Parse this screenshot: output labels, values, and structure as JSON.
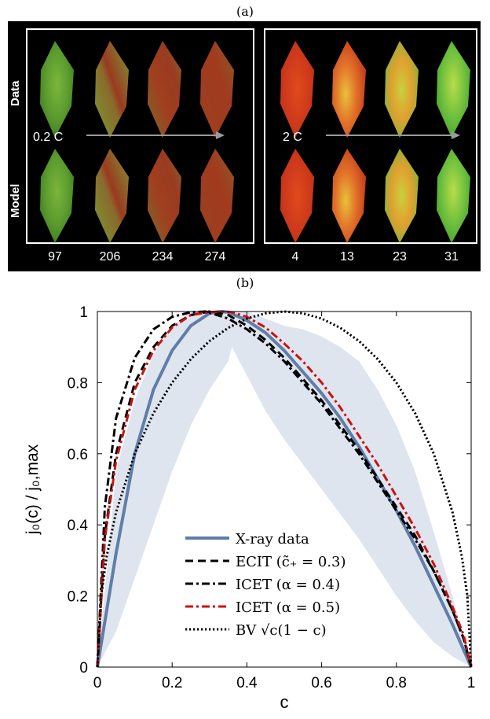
{
  "figure": {
    "label_a": "(a)",
    "label_b": "(b)"
  },
  "panel_a": {
    "row_labels": [
      "Data",
      "Model"
    ],
    "groups": [
      {
        "rate": "0.2 C",
        "times": [
          "97",
          "206",
          "234",
          "274"
        ]
      },
      {
        "rate": "2 C",
        "times": [
          "4",
          "13",
          "23",
          "31"
        ]
      }
    ]
  },
  "chart_data": {
    "type": "line",
    "xlabel": "c",
    "ylabel": "j₀(c) / j₀,max",
    "xlim": [
      0,
      1
    ],
    "ylim": [
      0,
      1
    ],
    "xticks": [
      "0",
      "0.2",
      "0.4",
      "0.6",
      "0.8",
      "1"
    ],
    "yticks": [
      "0",
      "0.2",
      "0.4",
      "0.6",
      "0.8",
      "1"
    ],
    "grid": false,
    "legend_position": "lower-center",
    "band": {
      "x": [
        0,
        0.05,
        0.1,
        0.15,
        0.2,
        0.25,
        0.3,
        0.35,
        0.36,
        0.4,
        0.45,
        0.5,
        0.55,
        0.6,
        0.65,
        0.7,
        0.75,
        0.8,
        0.85,
        0.9,
        0.95,
        1
      ],
      "upper": [
        0,
        0.55,
        0.75,
        0.88,
        0.96,
        1.0,
        1.0,
        1.0,
        1.0,
        1.0,
        0.98,
        0.96,
        0.95,
        0.93,
        0.9,
        0.86,
        0.78,
        0.68,
        0.55,
        0.38,
        0.2,
        0
      ],
      "lower": [
        0,
        0.1,
        0.25,
        0.4,
        0.55,
        0.68,
        0.78,
        0.86,
        0.9,
        0.82,
        0.72,
        0.64,
        0.57,
        0.5,
        0.43,
        0.36,
        0.28,
        0.2,
        0.13,
        0.07,
        0.03,
        0
      ]
    },
    "series": [
      {
        "name": "X-ray data",
        "color": "#5f7ea8",
        "style": "solid",
        "x": [
          0,
          0.05,
          0.1,
          0.15,
          0.2,
          0.25,
          0.3,
          0.33,
          0.35,
          0.4,
          0.45,
          0.5,
          0.55,
          0.6,
          0.65,
          0.7,
          0.75,
          0.8,
          0.85,
          0.9,
          0.95,
          1
        ],
        "y": [
          0,
          0.32,
          0.6,
          0.78,
          0.89,
          0.96,
          0.995,
          1.0,
          0.998,
          0.975,
          0.94,
          0.89,
          0.83,
          0.77,
          0.7,
          0.62,
          0.53,
          0.44,
          0.34,
          0.23,
          0.12,
          0
        ]
      },
      {
        "name": "ECIT",
        "color": "#000000",
        "style": "dashed",
        "x": [
          0,
          0.02,
          0.05,
          0.1,
          0.15,
          0.2,
          0.25,
          0.3,
          0.35,
          0.4,
          0.45,
          0.5,
          0.55,
          0.6,
          0.65,
          0.7,
          0.75,
          0.8,
          0.85,
          0.9,
          0.95,
          0.98,
          1
        ],
        "y": [
          0,
          0.37,
          0.6,
          0.8,
          0.9,
          0.96,
          0.99,
          1.0,
          0.99,
          0.96,
          0.92,
          0.87,
          0.81,
          0.75,
          0.68,
          0.61,
          0.53,
          0.45,
          0.37,
          0.27,
          0.16,
          0.08,
          0
        ]
      },
      {
        "name": "ICET (alpha = 0.4)",
        "color": "#000000",
        "style": "dashdot",
        "x": [
          0,
          0.02,
          0.05,
          0.1,
          0.15,
          0.2,
          0.25,
          0.29,
          0.35,
          0.4,
          0.45,
          0.5,
          0.55,
          0.6,
          0.65,
          0.7,
          0.75,
          0.8,
          0.85,
          0.9,
          0.95,
          0.98,
          1
        ],
        "y": [
          0,
          0.45,
          0.7,
          0.87,
          0.95,
          0.985,
          0.998,
          1.0,
          0.98,
          0.95,
          0.91,
          0.86,
          0.8,
          0.74,
          0.67,
          0.6,
          0.52,
          0.44,
          0.36,
          0.27,
          0.16,
          0.08,
          0
        ]
      },
      {
        "name": "ICET (alpha = 0.5)",
        "color": "#cc1111",
        "style": "dashdot",
        "x": [
          0,
          0.02,
          0.05,
          0.1,
          0.15,
          0.2,
          0.25,
          0.3,
          0.33,
          0.36,
          0.4,
          0.45,
          0.5,
          0.55,
          0.6,
          0.65,
          0.7,
          0.75,
          0.8,
          0.85,
          0.9,
          0.95,
          0.98,
          1
        ],
        "y": [
          0,
          0.36,
          0.58,
          0.78,
          0.89,
          0.955,
          0.99,
          0.998,
          1.0,
          0.998,
          0.985,
          0.955,
          0.91,
          0.86,
          0.8,
          0.73,
          0.65,
          0.57,
          0.48,
          0.39,
          0.29,
          0.17,
          0.09,
          0
        ]
      },
      {
        "name": "BV",
        "color": "#000000",
        "style": "dotted",
        "x": [
          0,
          0.01,
          0.025,
          0.05,
          0.1,
          0.15,
          0.2,
          0.25,
          0.3,
          0.35,
          0.4,
          0.45,
          0.5,
          0.55,
          0.6,
          0.65,
          0.7,
          0.75,
          0.8,
          0.85,
          0.9,
          0.95,
          0.975,
          0.99,
          1
        ],
        "y": [
          0,
          0.199,
          0.312,
          0.436,
          0.6,
          0.714,
          0.8,
          0.866,
          0.917,
          0.954,
          0.98,
          0.995,
          1.0,
          0.995,
          0.98,
          0.954,
          0.917,
          0.866,
          0.8,
          0.714,
          0.6,
          0.436,
          0.312,
          0.199,
          0
        ]
      }
    ],
    "legend_entries": [
      "X-ray data",
      "ECIT  (c̃₊ = 0.3)",
      "ICET  (α = 0.4)",
      "ICET  (α = 0.5)",
      "BV  √c(1 − c)"
    ]
  }
}
